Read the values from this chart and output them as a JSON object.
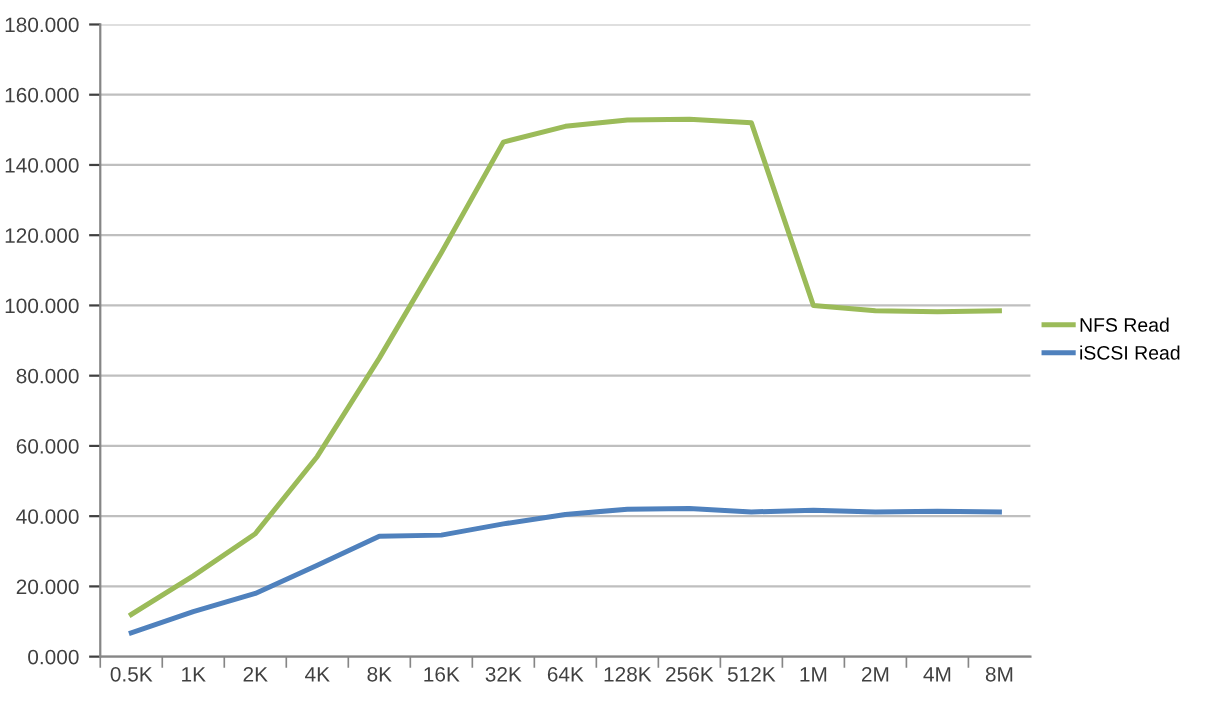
{
  "chart_data": {
    "type": "line",
    "categories": [
      "0.5K",
      "1K",
      "2K",
      "4K",
      "8K",
      "16K",
      "32K",
      "64K",
      "128K",
      "256K",
      "512K",
      "1M",
      "2M",
      "4M",
      "8M"
    ],
    "series": [
      {
        "name": "NFS Read",
        "color": "#9bbb59",
        "values": [
          12,
          23,
          35,
          57,
          85,
          115,
          146.5,
          151,
          152.8,
          153,
          152,
          100,
          98.5,
          98.2,
          98.5
        ]
      },
      {
        "name": "iSCSI Read",
        "color": "#4f81bd",
        "values": [
          6.8,
          12.8,
          18,
          26,
          34.3,
          34.6,
          37.8,
          40.5,
          42,
          42.2,
          41.2,
          41.7,
          41.2,
          41.4,
          41.2
        ]
      }
    ],
    "ylim": [
      0,
      180
    ],
    "yticks": [
      {
        "value": 0,
        "label": "0.000"
      },
      {
        "value": 20,
        "label": "20.000"
      },
      {
        "value": 40,
        "label": "40.000"
      },
      {
        "value": 60,
        "label": "60.000"
      },
      {
        "value": 80,
        "label": "80.000"
      },
      {
        "value": 100,
        "label": "100.000"
      },
      {
        "value": 120,
        "label": "120.000"
      },
      {
        "value": 140,
        "label": "140.000"
      },
      {
        "value": 160,
        "label": "160.000"
      },
      {
        "value": 180,
        "label": "180.000"
      }
    ],
    "grid": "y",
    "legend": "right",
    "marker": "none",
    "line_style": "solid"
  }
}
